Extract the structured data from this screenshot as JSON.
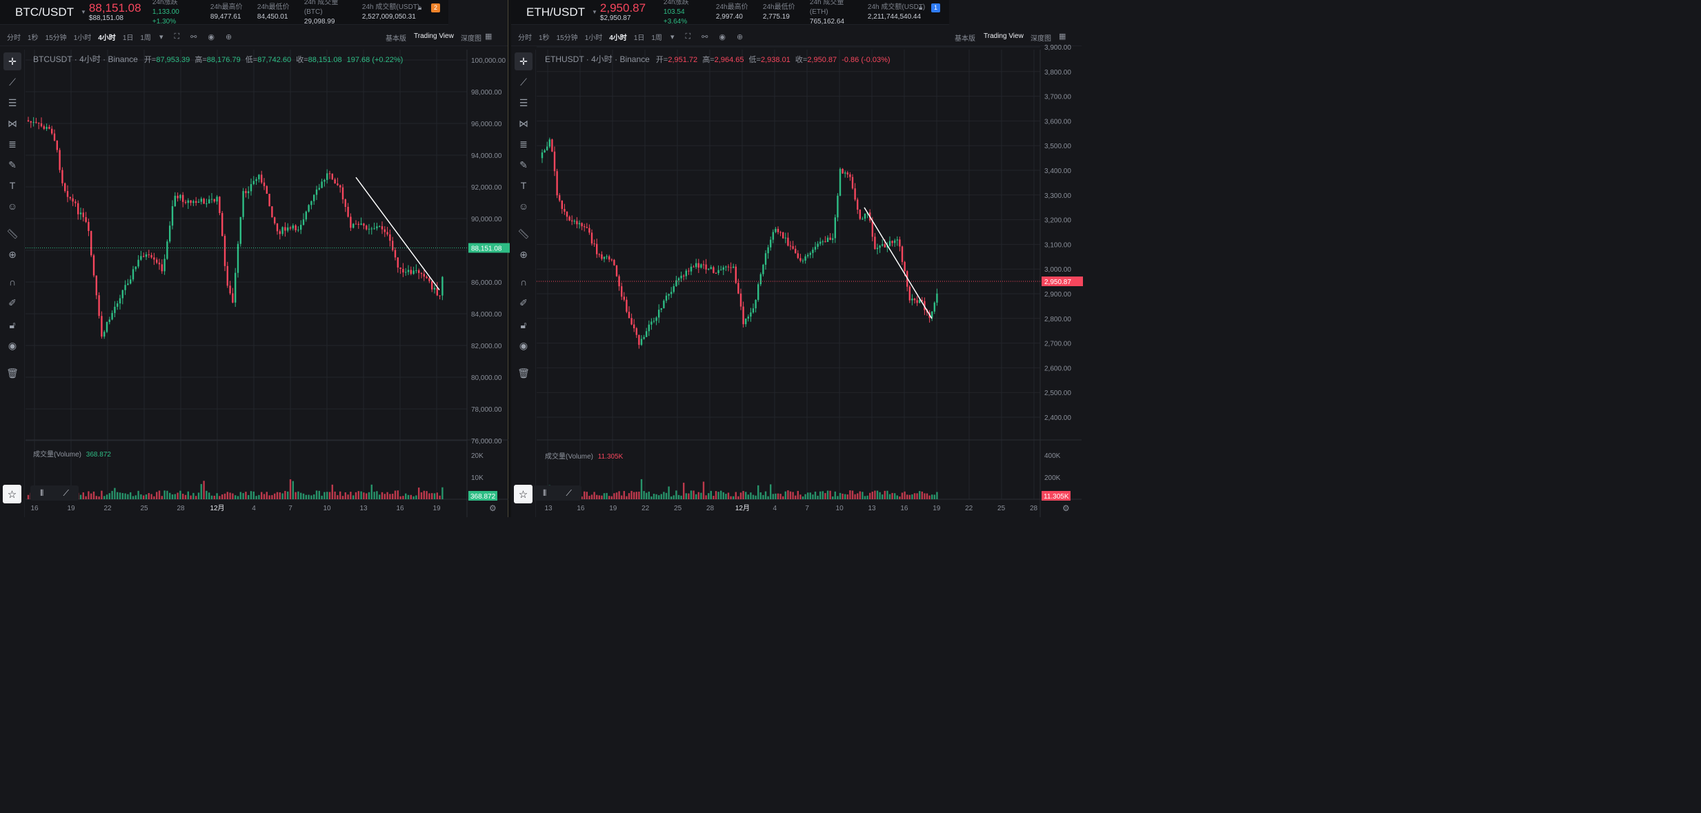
{
  "btc": {
    "ticker": {
      "symbol": "BTC/USDT",
      "price": "88,151.08",
      "price_sub": "$88,151.08",
      "stats": [
        {
          "label": "24h涨跌",
          "value": "1,133.00 +1.30%",
          "color": "green"
        },
        {
          "label": "24h最高价",
          "value": "89,477.61"
        },
        {
          "label": "24h最低价",
          "value": "84,450.01"
        },
        {
          "label": "24h 成交量(BTC)",
          "value": "29,098.99"
        },
        {
          "label": "24h 成交额(USDT)",
          "value": "2,527,009,050.31"
        }
      ],
      "badge": "2",
      "badge_color": "#f0832a"
    },
    "legend": {
      "title": "BTCUSDT · 4小时 · Binance",
      "open_label": "开=",
      "open": "87,953.39",
      "high_label": "高=",
      "high": "88,176.79",
      "low_label": "低=",
      "low": "87,742.60",
      "close_label": "收=",
      "close": "88,151.08",
      "change": "197.68 (+0.22%)"
    },
    "volume_label": "成交量(Volume)",
    "volume_value": "368.872",
    "price_axis": [
      "100,000.00",
      "98,000.00",
      "96,000.00",
      "94,000.00",
      "92,000.00",
      "90,000.00",
      "86,000.00",
      "84,000.00",
      "82,000.00",
      "80,000.00",
      "78,000.00",
      "76,000.00"
    ],
    "current_price_tag": "88,151.08",
    "volume_axis": [
      "20K",
      "10K"
    ],
    "volume_tag": "368.872",
    "time_axis": [
      "16",
      "19",
      "22",
      "25",
      "28",
      "12月",
      "4",
      "7",
      "10",
      "13",
      "16",
      "19"
    ]
  },
  "eth": {
    "ticker": {
      "symbol": "ETH/USDT",
      "price": "2,950.87",
      "price_sub": "$2,950.87",
      "stats": [
        {
          "label": "24h涨跌",
          "value": "103.54 +3.64%",
          "color": "green"
        },
        {
          "label": "24h最高价",
          "value": "2,997.40"
        },
        {
          "label": "24h最低价",
          "value": "2,775.19"
        },
        {
          "label": "24h 成交量(ETH)",
          "value": "765,162.64"
        },
        {
          "label": "24h 成交额(USDT)",
          "value": "2,211,744,540.44"
        }
      ],
      "badge": "1",
      "badge_color": "#2f7cf6"
    },
    "legend": {
      "title": "ETHUSDT · 4小时 · Binance",
      "open_label": "开=",
      "open": "2,951.72",
      "high_label": "高=",
      "high": "2,964.65",
      "low_label": "低=",
      "low": "2,938.01",
      "close_label": "收=",
      "close": "2,950.87",
      "change": "-0.86 (-0.03%)"
    },
    "volume_label": "成交量(Volume)",
    "volume_value": "11.305K",
    "price_axis": [
      "3,900.00",
      "3,800.00",
      "3,700.00",
      "3,600.00",
      "3,500.00",
      "3,400.00",
      "3,300.00",
      "3,200.00",
      "3,100.00",
      "3,000.00",
      "2,900.00",
      "2,800.00",
      "2,700.00",
      "2,600.00",
      "2,500.00",
      "2,400.00"
    ],
    "current_price_tag": "2,950.87",
    "volume_axis": [
      "400K",
      "200K"
    ],
    "volume_tag": "11.305K",
    "time_axis": [
      "13",
      "16",
      "19",
      "22",
      "25",
      "28",
      "12月",
      "4",
      "7",
      "10",
      "13",
      "16",
      "19",
      "22",
      "25",
      "28"
    ]
  },
  "toolbar": {
    "timeframes": [
      "分时",
      "1秒",
      "15分钟",
      "1小时",
      "4小时",
      "1日",
      "1周"
    ],
    "active_timeframe": "4小时",
    "modes": [
      "基本版",
      "Trading View",
      "深度图"
    ],
    "active_mode": "Trading View"
  },
  "colors": {
    "up": "#2ebd85",
    "down": "#f6465d",
    "background": "#16171b",
    "grid": "#23252b"
  },
  "tools": [
    "crosshair-icon",
    "trend-line-icon",
    "horizontal-lines-icon",
    "pattern-icon",
    "fib-icon",
    "brush-icon",
    "text-icon",
    "emoji-icon",
    "ruler-icon",
    "zoom-in-icon",
    "magnet-icon",
    "pencil-lock-icon",
    "lock-icon",
    "eye-icon",
    "trash-icon"
  ]
}
